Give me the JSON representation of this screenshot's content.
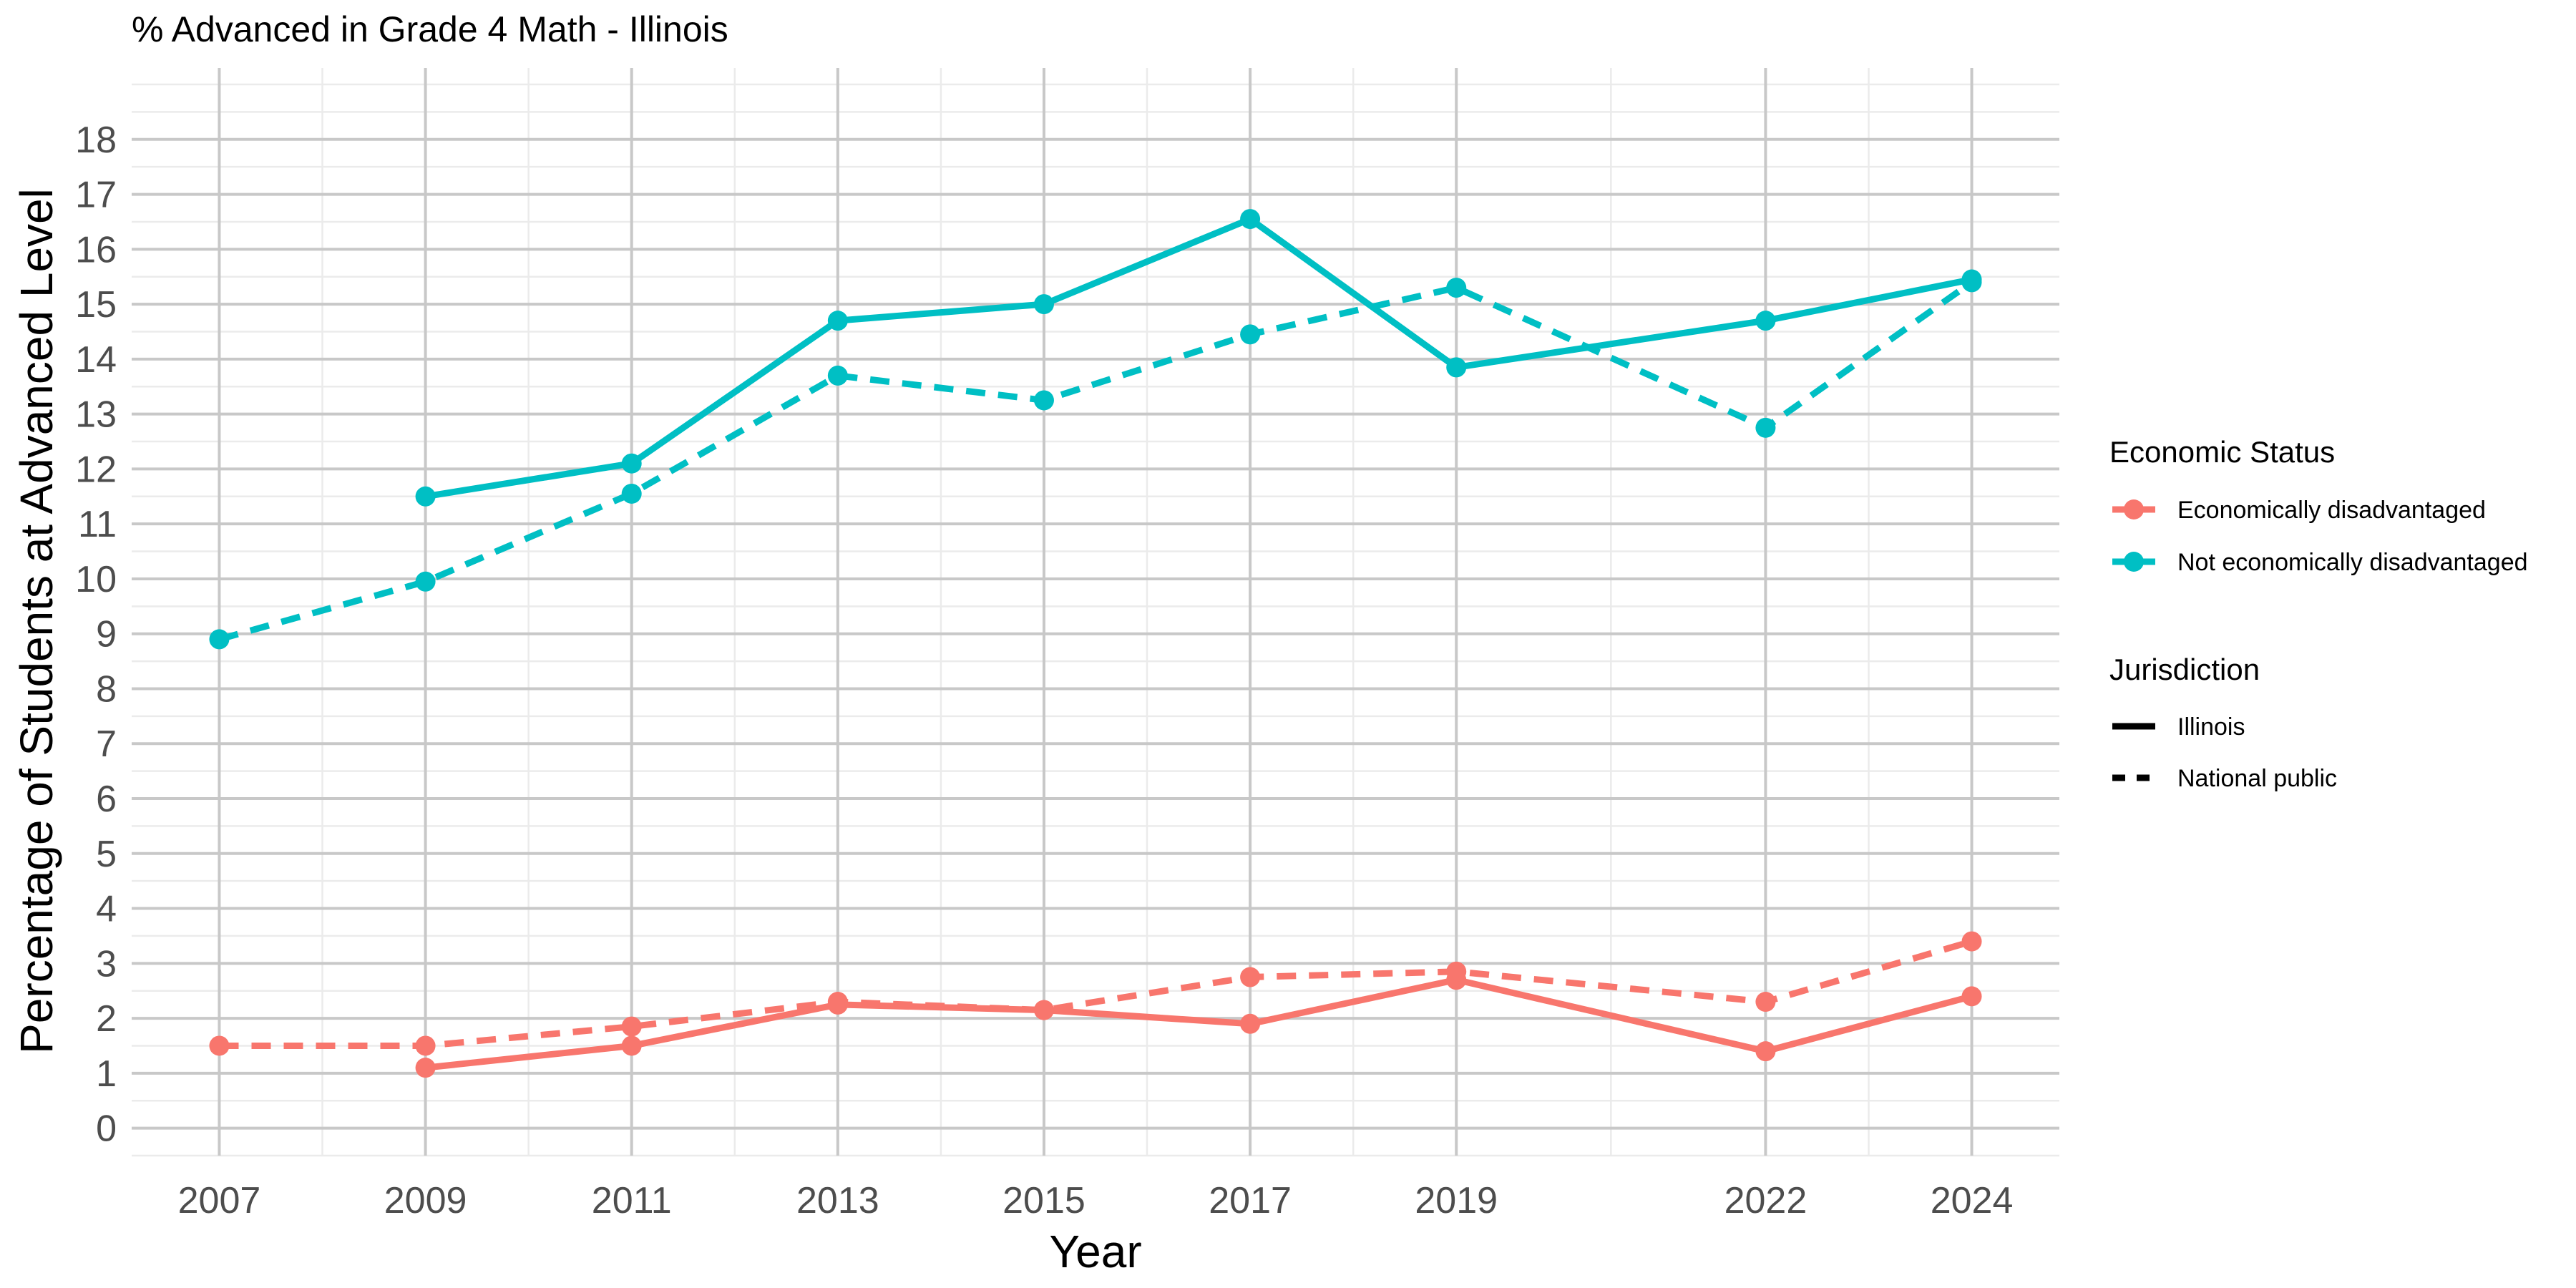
{
  "chart_data": {
    "type": "line",
    "title": "% Advanced in Grade 4 Math - Illinois",
    "xlabel": "Year",
    "ylabel": "Percentage of Students at Advanced Level",
    "x_ticks": [
      "2007",
      "2009",
      "2011",
      "2013",
      "2015",
      "2017",
      "2019",
      "2022",
      "2024"
    ],
    "y_ticks": [
      "0",
      "1",
      "2",
      "3",
      "4",
      "5",
      "6",
      "7",
      "8",
      "9",
      "10",
      "11",
      "12",
      "13",
      "14",
      "15",
      "16",
      "17",
      "18"
    ],
    "xlim": [
      2006.15,
      2024.85
    ],
    "ylim": [
      -0.5,
      19.3
    ],
    "grid": true,
    "legend_placement": "right",
    "legends": {
      "color": {
        "title": "Economic Status",
        "entries": [
          {
            "label": "Economically disadvantaged",
            "color": "#F8766D"
          },
          {
            "label": "Not economically disadvantaged",
            "color": "#00BFC4"
          }
        ]
      },
      "linetype": {
        "title": "Jurisdiction",
        "entries": [
          {
            "label": "Illinois",
            "dash": "solid"
          },
          {
            "label": "National public",
            "dash": "dashed"
          }
        ]
      }
    },
    "series": [
      {
        "group": "Economically disadvantaged",
        "jurisdiction": "Illinois",
        "color": "#F8766D",
        "dash": "solid",
        "x": [
          2009,
          2011,
          2013,
          2015,
          2017,
          2019,
          2022,
          2024
        ],
        "y": [
          1.1,
          1.5,
          2.25,
          2.15,
          1.9,
          2.7,
          1.4,
          2.4
        ]
      },
      {
        "group": "Economically disadvantaged",
        "jurisdiction": "National public",
        "color": "#F8766D",
        "dash": "dashed",
        "x": [
          2007,
          2009,
          2011,
          2013,
          2015,
          2017,
          2019,
          2022,
          2024
        ],
        "y": [
          1.5,
          1.5,
          1.85,
          2.3,
          2.15,
          2.75,
          2.85,
          2.3,
          3.4
        ]
      },
      {
        "group": "Not economically disadvantaged",
        "jurisdiction": "Illinois",
        "color": "#00BFC4",
        "dash": "solid",
        "x": [
          2009,
          2011,
          2013,
          2015,
          2017,
          2019,
          2022,
          2024
        ],
        "y": [
          11.5,
          12.1,
          14.7,
          15.0,
          16.55,
          13.85,
          14.7,
          15.45
        ]
      },
      {
        "group": "Not economically disadvantaged",
        "jurisdiction": "National public",
        "color": "#00BFC4",
        "dash": "dashed",
        "x": [
          2007,
          2009,
          2011,
          2013,
          2015,
          2017,
          2019,
          2022,
          2024
        ],
        "y": [
          8.9,
          9.95,
          11.55,
          13.7,
          13.25,
          14.45,
          15.3,
          12.75,
          15.4
        ]
      }
    ]
  }
}
